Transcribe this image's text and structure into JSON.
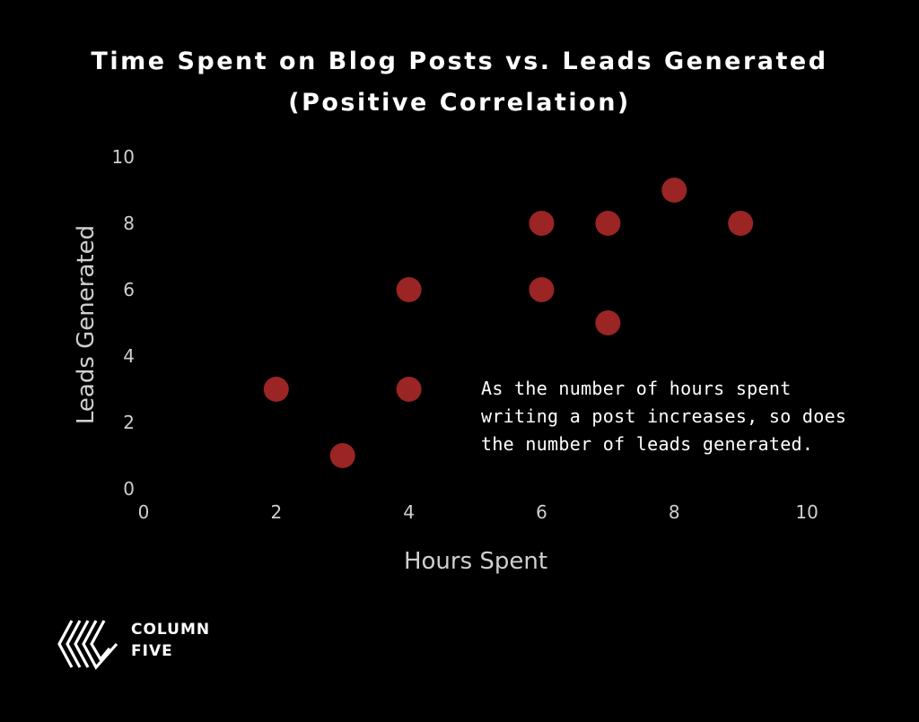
{
  "chart_data": {
    "type": "scatter",
    "title_lines": [
      "Time Spent on Blog Posts vs. Leads Generated",
      "(Positive Correlation)"
    ],
    "xlabel": "Hours Spent",
    "ylabel": "Leads Generated",
    "xlim": [
      0,
      11
    ],
    "ylim": [
      0,
      10
    ],
    "x_ticks": [
      "0",
      "2",
      "4",
      "6",
      "8",
      "10"
    ],
    "y_ticks": [
      "0",
      "2",
      "4",
      "6",
      "8",
      "10"
    ],
    "grid": false,
    "points": [
      {
        "x": 2,
        "y": 3
      },
      {
        "x": 3,
        "y": 1
      },
      {
        "x": 4,
        "y": 6
      },
      {
        "x": 4,
        "y": 3
      },
      {
        "x": 6,
        "y": 8
      },
      {
        "x": 6,
        "y": 6
      },
      {
        "x": 7,
        "y": 8
      },
      {
        "x": 7,
        "y": 5
      },
      {
        "x": 8,
        "y": 9
      },
      {
        "x": 9,
        "y": 8
      }
    ],
    "point_color": "#9b2424",
    "annotation_lines": [
      "As the number of hours spent",
      "writing a post increases, so does",
      "the number of leads generated."
    ]
  },
  "logo": {
    "line1": "COLUMN",
    "line2": "FIVE",
    "icon": "column-five-logo-icon"
  },
  "colors": {
    "background": "#000000",
    "text": "#ffffff",
    "axis_text": "#cfcfcf"
  }
}
